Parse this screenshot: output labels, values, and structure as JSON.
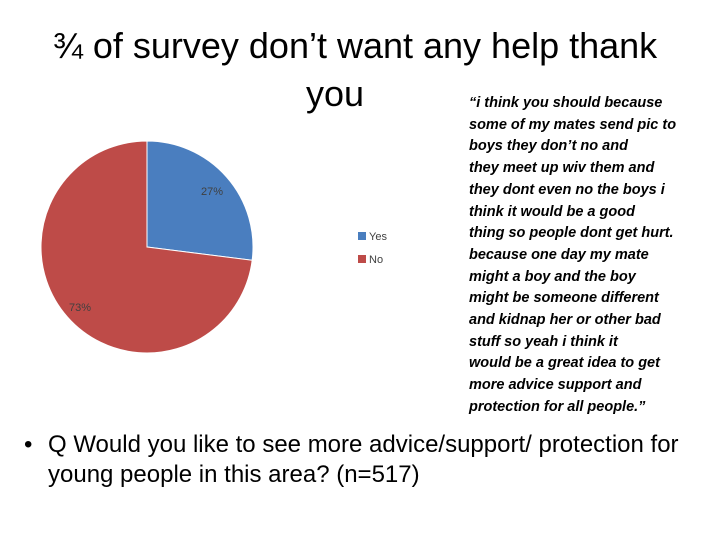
{
  "slide": {
    "title_line1": "¾ of survey don’t want any help thank",
    "title_line2": "you",
    "quote_lines": [
      "“i think you should because",
      "some of my mates send pic to",
      "boys they don’t no and",
      "they meet up wiv them and",
      "they dont even no the boys i",
      "think it would be a good",
      "thing so people dont get hurt.",
      "because one day my mate",
      "might a boy and the boy",
      "might be someone different",
      "and kidnap her or other bad",
      "stuff so yeah i think it",
      "would be a great idea to get",
      "more advice support and",
      "protection for all people.”"
    ],
    "bullet_symbol": "•",
    "bullet_text": "Q Would you like to see more advice/support/ protection for young people in this area? (n=517)"
  },
  "chart_data": {
    "type": "pie",
    "title": "",
    "categories": [
      "Yes",
      "No"
    ],
    "values": [
      27,
      73
    ],
    "labels": [
      "27%",
      "73%"
    ],
    "colors": [
      "#4a7ebf",
      "#be4b48"
    ],
    "legend_position": "right"
  }
}
